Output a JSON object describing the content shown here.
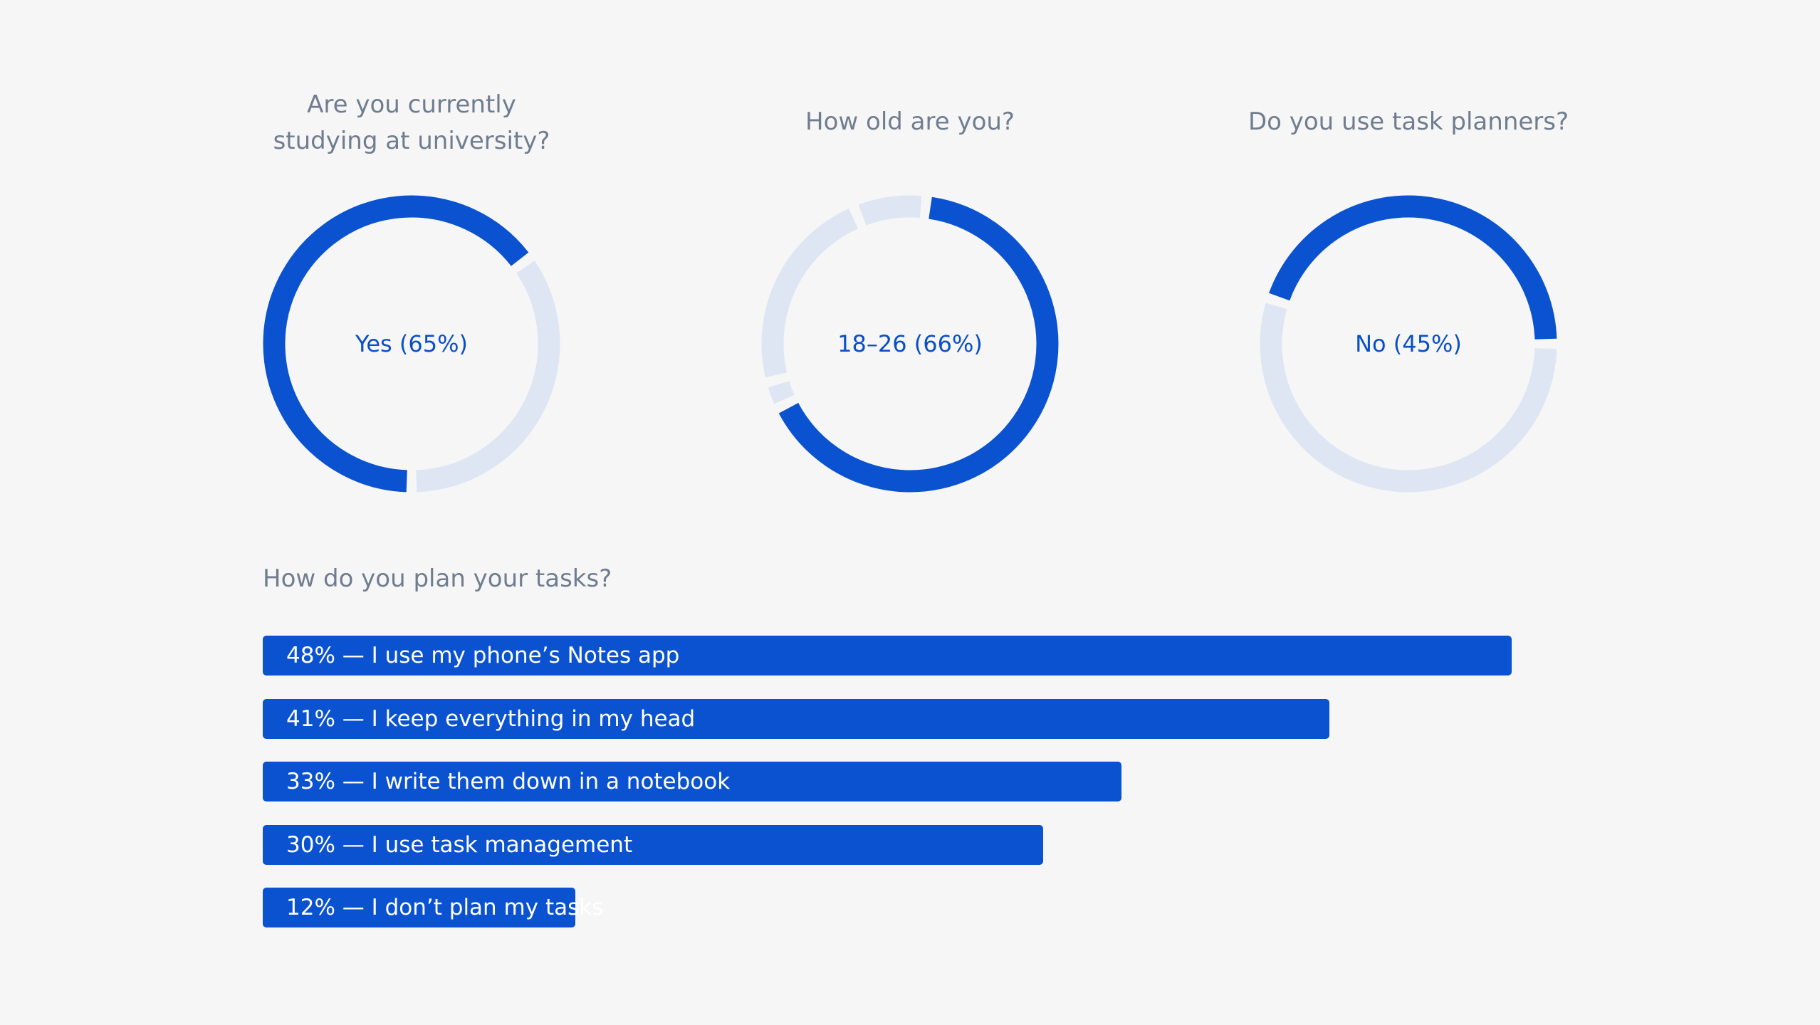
{
  "colors": {
    "background": "#f6f6f6",
    "accent": "#0a52d0",
    "track": "#dfe6f3",
    "question_text": "#6f7d8f",
    "label_text": "#0a4fc7"
  },
  "chart_data": [
    {
      "type": "pie",
      "title": "Are you currently studying at university?",
      "title_lines": [
        "Are you currently",
        "studying at university?"
      ],
      "center_label": "Yes (65%)",
      "slices": [
        {
          "label": "Yes",
          "value": 65,
          "highlight": true
        },
        {
          "label": "",
          "value": 35,
          "highlight": false
        }
      ]
    },
    {
      "type": "pie",
      "title": "How old are you?",
      "title_lines": [
        "How old are you?"
      ],
      "center_label": "18–26 (66%)",
      "slices": [
        {
          "label": "18–26",
          "value": 66,
          "highlight": true
        },
        {
          "label": "",
          "value": 3,
          "highlight": false
        },
        {
          "label": "",
          "value": 23,
          "highlight": false
        },
        {
          "label": "",
          "value": 8,
          "highlight": false
        }
      ]
    },
    {
      "type": "pie",
      "title": "Do you use task planners?",
      "title_lines": [
        "Do you use task planners?"
      ],
      "center_label": "No (45%)",
      "slices": [
        {
          "label": "",
          "value": 55,
          "highlight": false
        },
        {
          "label": "No",
          "value": 45,
          "highlight": true
        }
      ]
    },
    {
      "type": "bar",
      "orientation": "horizontal",
      "title": "How do you plan your tasks?",
      "categories": [
        "48% — I use my phone’s Notes app",
        "41% — I keep everything in my head",
        "33% — I write them down in a notebook",
        "30% — I use task management",
        "12% — I don’t plan my tasks"
      ],
      "values": [
        48,
        41,
        33,
        30,
        12
      ]
    }
  ]
}
